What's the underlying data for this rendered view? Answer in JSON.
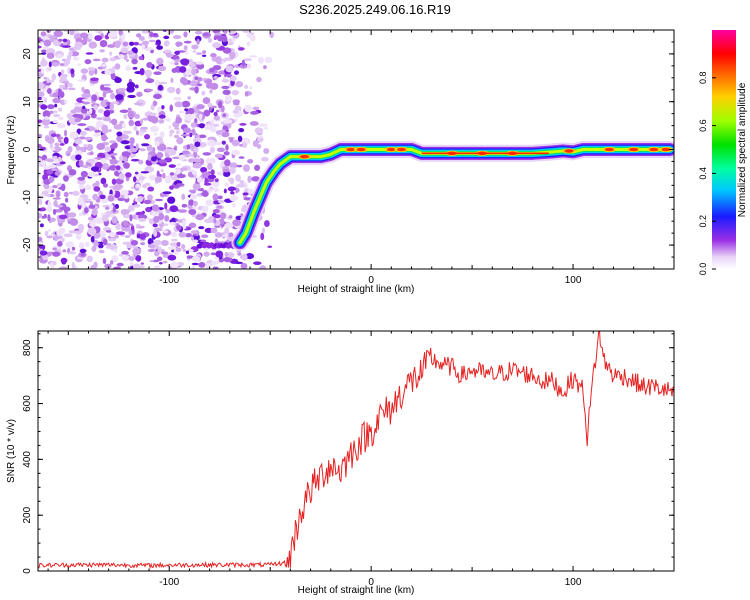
{
  "title": "S236.2025.249.06.16.R19",
  "chart_data": [
    {
      "type": "heatmap",
      "title": "S236.2025.249.06.16.R19",
      "xlabel": "Height of straight line (km)",
      "ylabel": "Frequency (Hz)",
      "xlim": [
        -165,
        150
      ],
      "ylim": [
        -25,
        25
      ],
      "xticks": [
        -100,
        0,
        100
      ],
      "yticks": [
        -20,
        -10,
        0,
        10,
        20
      ],
      "colorbar": {
        "label": "Normalized spectral amplitude",
        "range": [
          0,
          1
        ],
        "ticks": [
          0.0,
          0.2,
          0.4,
          0.6,
          0.8
        ],
        "tick_labels": [
          "0.0",
          "0.2",
          "0.4",
          "0.6",
          "0.8"
        ],
        "colormap": [
          "#ffffff",
          "#e2c8f5",
          "#8a2be2",
          "#1a1aff",
          "#00c8ff",
          "#00ff80",
          "#00e000",
          "#c8ff00",
          "#ffd000",
          "#ff6000",
          "#ff0000",
          "#ff00a0"
        ]
      },
      "ridge": {
        "description": "frequency track of strong signal",
        "x": [
          -65,
          -62,
          -58,
          -55,
          -52,
          -48,
          -45,
          -40,
          -35,
          -30,
          -25,
          -20,
          -15,
          -10,
          0,
          10,
          20,
          25,
          40,
          60,
          80,
          90,
          95,
          100,
          105,
          110,
          120,
          130,
          140,
          148
        ],
        "y": [
          -19.5,
          -17.5,
          -13,
          -10,
          -7,
          -4.5,
          -3,
          -1.5,
          -1.5,
          -1.5,
          -1.5,
          -1,
          0,
          0,
          0,
          0,
          0,
          -0.8,
          -0.8,
          -0.8,
          -0.8,
          -0.5,
          -0.3,
          -0.5,
          0,
          0,
          0,
          0,
          0,
          0
        ]
      },
      "noise_region": {
        "x": [
          -165,
          -55
        ],
        "y": [
          -25,
          25
        ]
      },
      "low_track": {
        "x": [
          -85,
          -65
        ],
        "y": -20
      }
    },
    {
      "type": "line",
      "xlabel": "Height of straight line (km)",
      "ylabel": "SNR (10 * v/v)",
      "xlim": [
        -165,
        150
      ],
      "ylim": [
        0,
        860
      ],
      "xticks": [
        -100,
        0,
        100
      ],
      "yticks": [
        0,
        200,
        400,
        600,
        800
      ],
      "color": "#e62222",
      "series": [
        {
          "name": "SNR",
          "x": [
            -165,
            -150,
            -130,
            -110,
            -90,
            -70,
            -50,
            -42,
            -40,
            -35,
            -30,
            -25,
            -20,
            -15,
            -10,
            -5,
            0,
            5,
            10,
            15,
            20,
            25,
            30,
            35,
            40,
            45,
            50,
            60,
            70,
            80,
            85,
            90,
            95,
            100,
            105,
            107,
            110,
            113,
            115,
            120,
            125,
            130,
            135,
            140,
            150
          ],
          "y": [
            20,
            22,
            22,
            20,
            22,
            22,
            22,
            30,
            60,
            210,
            290,
            340,
            380,
            360,
            420,
            470,
            500,
            560,
            580,
            640,
            680,
            710,
            760,
            740,
            730,
            700,
            720,
            700,
            720,
            700,
            680,
            680,
            640,
            690,
            650,
            480,
            700,
            860,
            760,
            700,
            700,
            680,
            660,
            660,
            640
          ]
        }
      ]
    }
  ]
}
